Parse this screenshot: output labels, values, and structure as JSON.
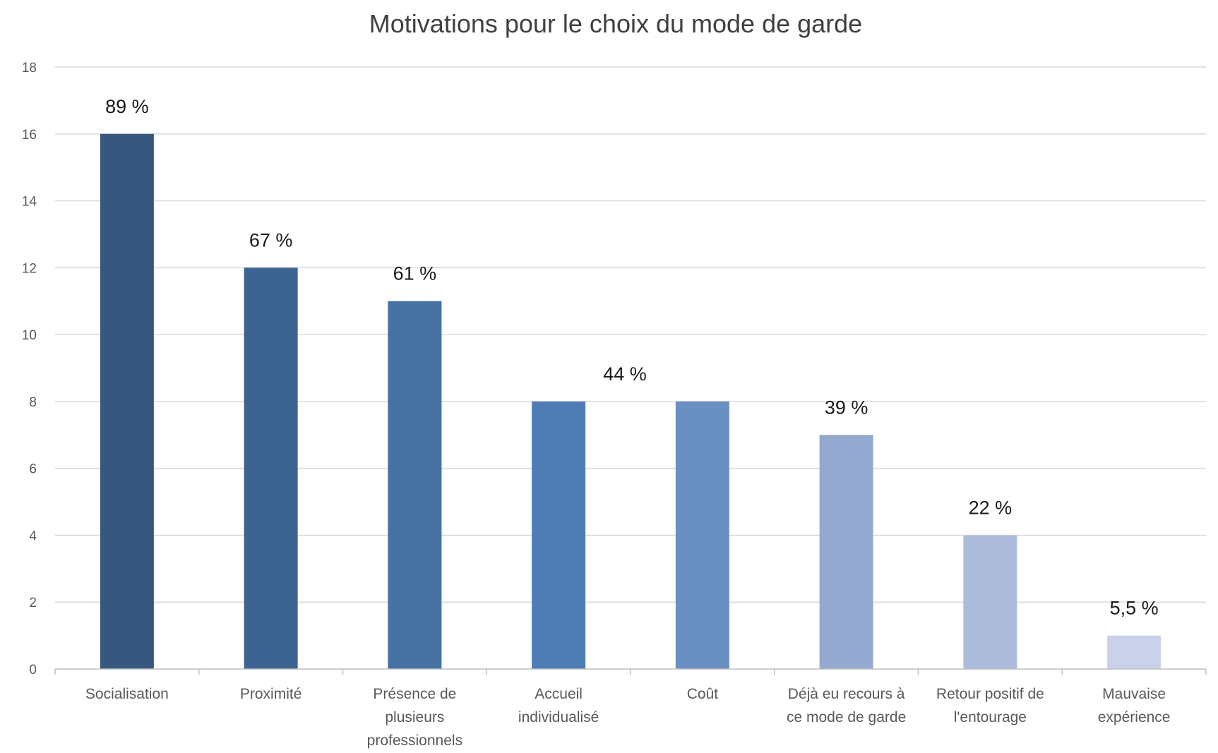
{
  "chart_data": {
    "type": "bar",
    "title": "Motivations pour le choix du mode de garde",
    "xlabel": "",
    "ylabel": "",
    "ylim": [
      0,
      18
    ],
    "yticks": [
      0,
      2,
      4,
      6,
      8,
      10,
      12,
      14,
      16,
      18
    ],
    "grid": true,
    "legend": "none",
    "categories": [
      [
        "Socialisation"
      ],
      [
        "Proximité"
      ],
      [
        "Présence de",
        "plusieurs",
        "professionnels"
      ],
      [
        "Accueil",
        "individualisé"
      ],
      [
        "Coût"
      ],
      [
        "Déjà eu recours à",
        "ce mode de garde"
      ],
      [
        "Retour positif de",
        "l'entourage"
      ],
      [
        "Mauvaise",
        "expérience"
      ]
    ],
    "values": [
      16,
      12,
      11,
      8,
      8,
      7,
      4,
      1
    ],
    "data_labels": [
      "89 %",
      "67 %",
      "61 %",
      "",
      "44 %",
      "39 %",
      "22 %",
      "5,5 %"
    ],
    "colors": [
      "#36587f",
      "#3d6392",
      "#4571a3",
      "#4e7db6",
      "#6a8fc2",
      "#94a9d0",
      "#adbcdb",
      "#c9d2e8"
    ]
  }
}
